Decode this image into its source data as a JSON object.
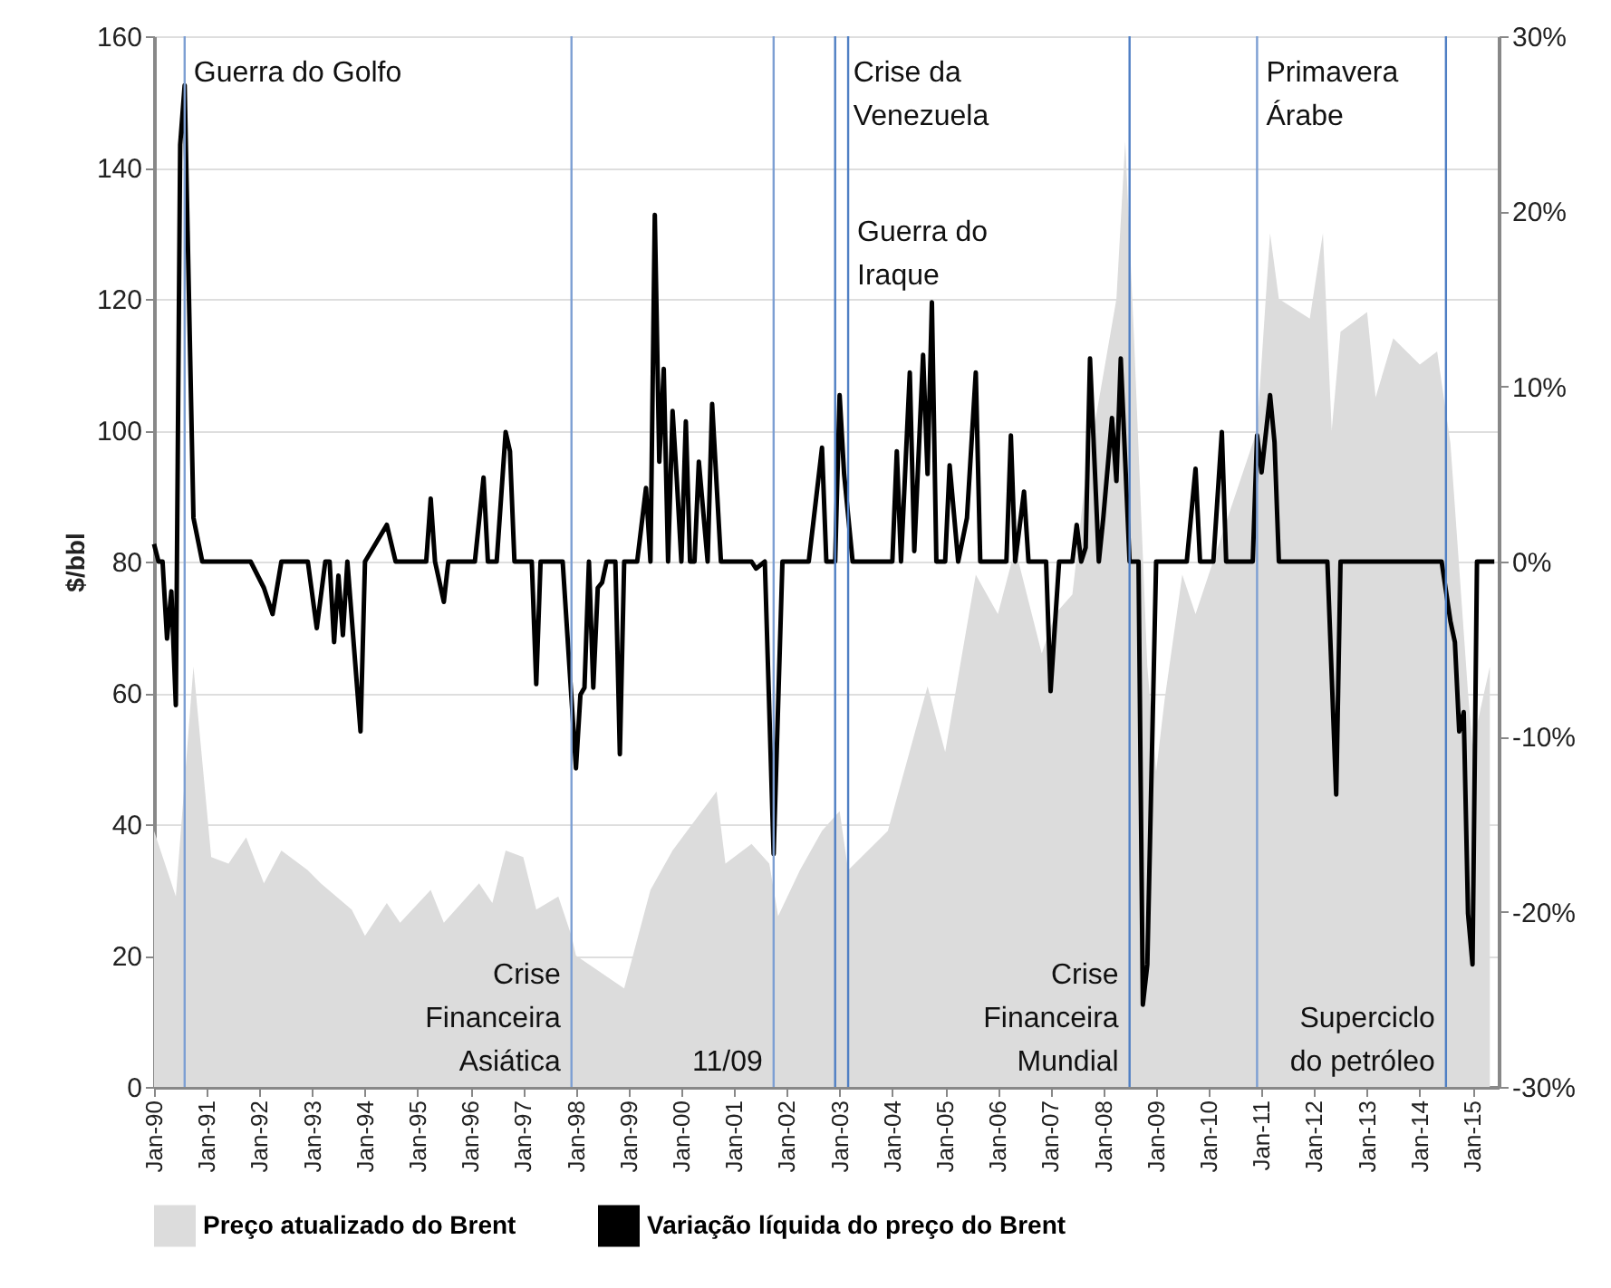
{
  "chart_data": {
    "type": "area",
    "ylabel": "$/bbl",
    "xlim": [
      "1990-01",
      "2015-07"
    ],
    "xticks": [
      {
        "value": "1990-01",
        "label": "Jan-90"
      },
      {
        "value": "1991-01",
        "label": "Jan-91"
      },
      {
        "value": "1992-01",
        "label": "Jan-92"
      },
      {
        "value": "1993-01",
        "label": "Jan-93"
      },
      {
        "value": "1994-01",
        "label": "Jan-94"
      },
      {
        "value": "1995-01",
        "label": "Jan-95"
      },
      {
        "value": "1996-01",
        "label": "Jan-96"
      },
      {
        "value": "1997-01",
        "label": "Jan-97"
      },
      {
        "value": "1998-01",
        "label": "Jan-98"
      },
      {
        "value": "1999-01",
        "label": "Jan-99"
      },
      {
        "value": "2000-01",
        "label": "Jan-00"
      },
      {
        "value": "2001-01",
        "label": "Jan-01"
      },
      {
        "value": "2002-01",
        "label": "Jan-02"
      },
      {
        "value": "2003-01",
        "label": "Jan-03"
      },
      {
        "value": "2004-01",
        "label": "Jan-04"
      },
      {
        "value": "2005-01",
        "label": "Jan-05"
      },
      {
        "value": "2006-01",
        "label": "Jan-06"
      },
      {
        "value": "2007-01",
        "label": "Jan-07"
      },
      {
        "value": "2008-01",
        "label": "Jan-08"
      },
      {
        "value": "2009-01",
        "label": "Jan-09"
      },
      {
        "value": "2010-01",
        "label": "Jan-10"
      },
      {
        "value": "2011-01",
        "label": "Jan-11"
      },
      {
        "value": "2012-01",
        "label": "Jan-12"
      },
      {
        "value": "2013-01",
        "label": "Jan-13"
      },
      {
        "value": "2014-01",
        "label": "Jan-14"
      },
      {
        "value": "2015-01",
        "label": "Jan-15"
      }
    ],
    "ylim": [
      0,
      160
    ],
    "yticks": [
      0,
      20,
      40,
      60,
      80,
      100,
      120,
      140,
      160
    ],
    "y2lim": [
      -30,
      30
    ],
    "y2ticks": [
      {
        "value": -30,
        "label": "-30%"
      },
      {
        "value": -20,
        "label": "-20%"
      },
      {
        "value": -10,
        "label": "-10%"
      },
      {
        "value": 0,
        "label": "0%"
      },
      {
        "value": 10,
        "label": "10%"
      },
      {
        "value": 20,
        "label": "20%"
      },
      {
        "value": 30,
        "label": "30%"
      }
    ],
    "grid": "y",
    "legend": "bottom",
    "marker": "none",
    "line_style": "solid",
    "series": [
      {
        "name": "Preço atualizado do Brent",
        "color": "#dcdcdc",
        "x": [
          "1990-01",
          "1990-06",
          "1990-10",
          "1991-02",
          "1991-06",
          "1991-10",
          "1992-02",
          "1992-06",
          "1992-12",
          "1993-03",
          "1993-10",
          "1994-01",
          "1994-06",
          "1994-09",
          "1995-04",
          "1995-07",
          "1996-03",
          "1996-06",
          "1996-09",
          "1997-01",
          "1997-04",
          "1997-09",
          "1997-12",
          "1998-01",
          "1998-12",
          "1999-06",
          "1999-11",
          "2000-09",
          "2000-11",
          "2001-05",
          "2001-09",
          "2001-11",
          "2002-04",
          "2002-09",
          "2003-01",
          "2003-03",
          "2003-12",
          "2004-09",
          "2005-01",
          "2005-08",
          "2006-01",
          "2006-05",
          "2006-11",
          "2007-02",
          "2007-06",
          "2007-09",
          "2008-04",
          "2008-06",
          "2008-08",
          "2008-11",
          "2009-01",
          "2009-03",
          "2009-07",
          "2009-10",
          "2010-05",
          "2010-12",
          "2011-03",
          "2011-05",
          "2011-12",
          "2012-03",
          "2012-05",
          "2012-07",
          "2013-01",
          "2013-03",
          "2013-07",
          "2014-01",
          "2014-05",
          "2014-08",
          "2014-12",
          "2015-01",
          "2015-05"
        ],
        "values": [
          39,
          29,
          64,
          35,
          34,
          38,
          31,
          36,
          33,
          31,
          27,
          23,
          28,
          25,
          30,
          25,
          31,
          28,
          36,
          35,
          27,
          29,
          23,
          20,
          15,
          30,
          36,
          45,
          34,
          37,
          34,
          26,
          33,
          39,
          42,
          33,
          39,
          61,
          51,
          78,
          72,
          82,
          66,
          72,
          75,
          93,
          120,
          144,
          114,
          64,
          48,
          59,
          78,
          72,
          86,
          100,
          130,
          120,
          117,
          130,
          100,
          115,
          118,
          105,
          114,
          110,
          112,
          98,
          60,
          52,
          64
        ]
      },
      {
        "name": "Variação líquida do preço do Brent",
        "type": "line",
        "axis": "y2",
        "color": "#000000",
        "x": [
          "1990-01",
          "1990-02",
          "1990-03",
          "1990-04",
          "1990-05",
          "1990-06",
          "1990-07",
          "1990-08",
          "1990-10",
          "1990-12",
          "1991-11",
          "1992-02",
          "1992-04",
          "1992-06",
          "1992-12",
          "1993-02",
          "1993-04",
          "1993-05",
          "1993-06",
          "1993-07",
          "1993-08",
          "1993-09",
          "1993-12",
          "1994-01",
          "1994-06",
          "1994-08",
          "1995-03",
          "1995-04",
          "1995-05",
          "1995-07",
          "1995-08",
          "1996-02",
          "1996-04",
          "1996-05",
          "1996-07",
          "1996-09",
          "1996-10",
          "1996-11",
          "1997-03",
          "1997-04",
          "1997-05",
          "1997-10",
          "1998-01",
          "1998-02",
          "1998-03",
          "1998-04",
          "1998-05",
          "1998-06",
          "1998-07",
          "1998-08",
          "1998-10",
          "1998-11",
          "1998-12",
          "1999-03",
          "1999-05",
          "1999-06",
          "1999-07",
          "1999-08",
          "1999-09",
          "1999-10",
          "1999-11",
          "1999-12",
          "2000-01",
          "2000-02",
          "2000-03",
          "2000-04",
          "2000-05",
          "2000-07",
          "2000-08",
          "2000-10",
          "2001-05",
          "2001-06",
          "2001-08",
          "2001-10",
          "2001-12",
          "2002-06",
          "2002-07",
          "2002-09",
          "2002-10",
          "2002-12",
          "2003-01",
          "2003-02",
          "2003-04",
          "2004-01",
          "2004-02",
          "2004-03",
          "2004-05",
          "2004-06",
          "2004-08",
          "2004-09",
          "2004-10",
          "2004-11",
          "2005-01",
          "2005-02",
          "2005-04",
          "2005-06",
          "2005-08",
          "2005-09",
          "2006-03",
          "2006-04",
          "2006-05",
          "2006-07",
          "2006-08",
          "2006-12",
          "2007-01",
          "2007-03",
          "2007-06",
          "2007-07",
          "2007-08",
          "2007-09",
          "2007-10",
          "2007-12",
          "2008-01",
          "2008-03",
          "2008-04",
          "2008-05",
          "2008-07",
          "2008-09",
          "2008-10",
          "2008-11",
          "2009-01",
          "2009-08",
          "2009-10",
          "2009-11",
          "2010-02",
          "2010-04",
          "2010-05",
          "2010-11",
          "2010-12",
          "2011-01",
          "2011-03",
          "2011-04",
          "2011-05",
          "2012-04",
          "2012-06",
          "2012-07",
          "2014-06",
          "2014-08",
          "2014-09",
          "2014-10",
          "2014-11",
          "2014-12",
          "2015-01",
          "2015-02",
          "2015-06"
        ],
        "values": [
          1,
          0,
          0,
          -4.4,
          -1.7,
          -8.2,
          23.8,
          27.2,
          2.5,
          0,
          0,
          -1.5,
          -3,
          0,
          0,
          -3.8,
          0,
          0,
          -4.6,
          -0.8,
          -4.2,
          0,
          -9.7,
          0,
          2.1,
          0,
          0,
          3.6,
          0,
          -2.3,
          0,
          0,
          4.8,
          0,
          0,
          7.4,
          6.3,
          0,
          0,
          -7,
          0,
          0,
          -11.8,
          -7.6,
          -7.2,
          0,
          -7.2,
          -1.5,
          -1.2,
          0,
          0,
          -11,
          0,
          0,
          4.2,
          0,
          19.8,
          5.7,
          11,
          0,
          8.6,
          4.6,
          0,
          8,
          0,
          0,
          5.7,
          0,
          9,
          0,
          0,
          -0.4,
          0,
          -16.7,
          0,
          0,
          2.1,
          6.5,
          0,
          0,
          9.5,
          5,
          0,
          0,
          6.3,
          0,
          10.8,
          0.6,
          11.8,
          5,
          14.8,
          0,
          0,
          5.5,
          0,
          2.5,
          10.8,
          0,
          0,
          7.2,
          0,
          4,
          0,
          0,
          -7.4,
          0,
          0,
          2.1,
          0,
          0.8,
          11.6,
          0,
          2.5,
          8.2,
          4.6,
          11.6,
          0,
          0,
          -25.3,
          -23,
          0,
          0,
          5.3,
          0,
          0,
          7.4,
          0,
          0,
          7.2,
          5.1,
          9.5,
          6.8,
          0,
          0,
          -13.3,
          0,
          0,
          -3.4,
          -4.6,
          -9.7,
          -8.6,
          -20.1,
          -23,
          0,
          0
        ]
      }
    ],
    "ref_lines": [
      {
        "axis": "x",
        "value": "1990-08",
        "label": "Guerra do Golfo",
        "color": "#7d9fd3"
      },
      {
        "axis": "x",
        "value": "1997-12",
        "label": "Crise Financeira Asiática",
        "color": "#7d9fd3"
      },
      {
        "axis": "x",
        "value": "2001-10",
        "label": "11/09",
        "color": "#7d9fd3"
      },
      {
        "axis": "x",
        "value": "2002-12",
        "label": "Crise da Venezuela",
        "color": "#4f7fc4"
      },
      {
        "axis": "x",
        "value": "2003-03",
        "label": "Guerra do Iraque",
        "color": "#4f7fc4"
      },
      {
        "axis": "x",
        "value": "2008-07",
        "label": "Crise Financeira Mundial",
        "color": "#4f7fc4"
      },
      {
        "axis": "x",
        "value": "2010-12",
        "label": "Primavera Árabe",
        "color": "#7d9fd3"
      },
      {
        "axis": "x",
        "value": "2014-07",
        "label": "Superciclo do petróleo",
        "color": "#4f7fc4"
      }
    ]
  }
}
